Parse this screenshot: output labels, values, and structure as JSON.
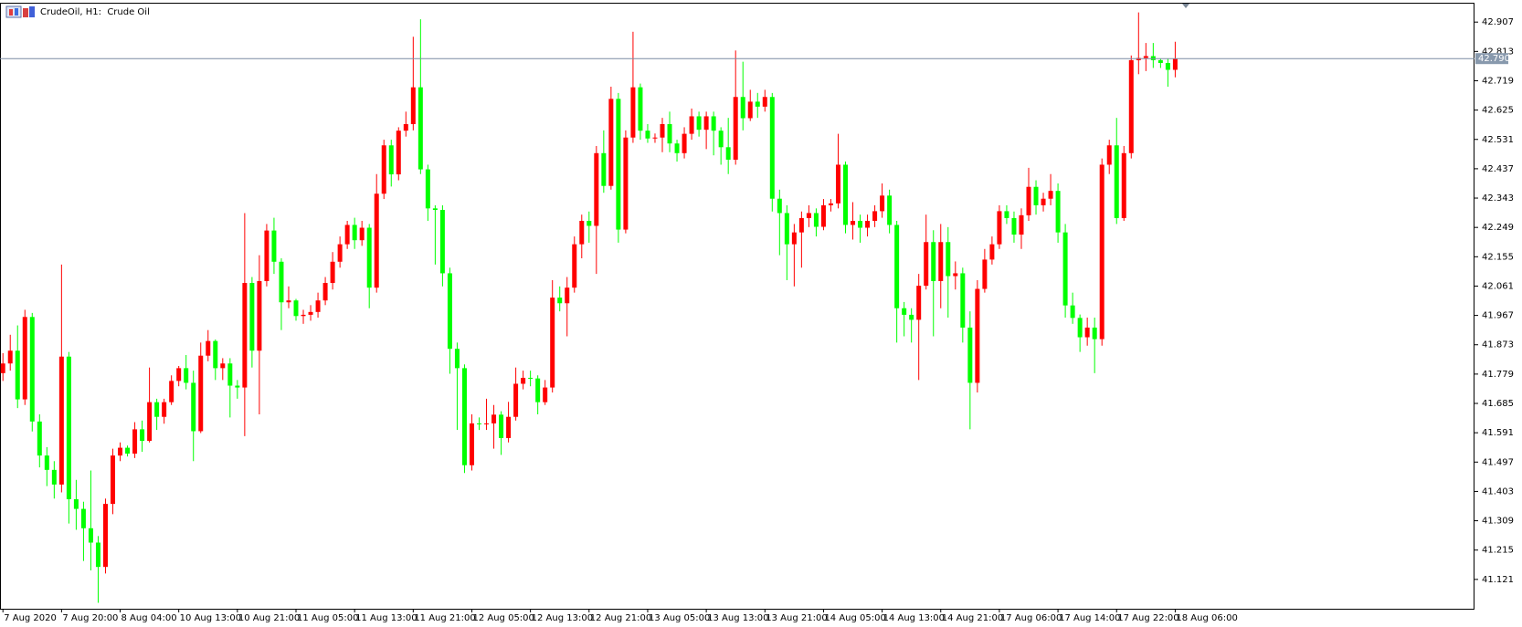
{
  "chart_data": {
    "type": "candlestick",
    "title": "CrudeOil, H1:  Crude Oil",
    "up_color": "#ff0000",
    "down_color": "#00ff00",
    "ylim": [
      41.027,
      42.969
    ],
    "yticks": [
      42.907,
      42.813,
      42.719,
      42.625,
      42.531,
      42.437,
      42.343,
      42.249,
      42.155,
      42.061,
      41.967,
      41.873,
      41.779,
      41.685,
      41.591,
      41.497,
      41.403,
      41.309,
      41.215,
      41.121
    ],
    "current_price": {
      "value": 42.79,
      "label": "42.790"
    },
    "categories": [
      "7 Aug 2020",
      null,
      null,
      null,
      null,
      null,
      null,
      null,
      "7 Aug 20:00",
      null,
      null,
      null,
      null,
      null,
      null,
      null,
      "8 Aug 04:00",
      null,
      null,
      null,
      null,
      null,
      null,
      null,
      "10 Aug 13:00",
      null,
      null,
      null,
      null,
      null,
      null,
      null,
      "10 Aug 21:00",
      null,
      null,
      null,
      null,
      null,
      null,
      null,
      "11 Aug 05:00",
      null,
      null,
      null,
      null,
      null,
      null,
      null,
      "11 Aug 13:00",
      null,
      null,
      null,
      null,
      null,
      null,
      null,
      "11 Aug 21:00",
      null,
      null,
      null,
      null,
      null,
      null,
      null,
      "12 Aug 05:00",
      null,
      null,
      null,
      null,
      null,
      null,
      null,
      "12 Aug 13:00",
      null,
      null,
      null,
      null,
      null,
      null,
      null,
      "12 Aug 21:00",
      null,
      null,
      null,
      null,
      null,
      null,
      null,
      "13 Aug 05:00",
      null,
      null,
      null,
      null,
      null,
      null,
      null,
      "13 Aug 13:00",
      null,
      null,
      null,
      null,
      null,
      null,
      null,
      "13 Aug 21:00",
      null,
      null,
      null,
      null,
      null,
      null,
      null,
      "14 Aug 05:00",
      null,
      null,
      null,
      null,
      null,
      null,
      null,
      "14 Aug 13:00",
      null,
      null,
      null,
      null,
      null,
      null,
      null,
      "14 Aug 21:00",
      null,
      null,
      null,
      null,
      null,
      null,
      null,
      "17 Aug 06:00",
      null,
      null,
      null,
      null,
      null,
      null,
      null,
      "17 Aug 14:00",
      null,
      null,
      null,
      null,
      null,
      null,
      null,
      "17 Aug 22:00",
      null,
      null,
      null,
      null,
      null,
      null,
      null,
      "18 Aug 06:00"
    ],
    "open": [
      41.782,
      41.813,
      41.854,
      41.698,
      41.962,
      41.627,
      41.518,
      41.472,
      41.425,
      41.835,
      41.378,
      41.347,
      41.285,
      41.239,
      41.161,
      41.363,
      41.518,
      41.543,
      41.524,
      41.602,
      41.565,
      41.689,
      41.642,
      41.689,
      41.757,
      41.798,
      41.751,
      41.596,
      41.838,
      41.885,
      41.798,
      41.813,
      41.742,
      41.736,
      42.071,
      41.854,
      42.077,
      42.239,
      42.139,
      42.009,
      42.015,
      41.965,
      41.969,
      41.978,
      42.015,
      42.071,
      42.139,
      42.195,
      42.257,
      42.208,
      42.248,
      42.056,
      42.357,
      42.512,
      42.419,
      42.559,
      42.58,
      42.698,
      42.435,
      42.31,
      42.305,
      42.102,
      41.86,
      41.798,
      41.487,
      41.621,
      41.618,
      41.621,
      41.649,
      41.574,
      41.642,
      41.748,
      41.767,
      41.765,
      41.689,
      41.736,
      42.024,
      42.006,
      42.056,
      42.195,
      42.27,
      42.254,
      42.487,
      42.382,
      42.661,
      42.242,
      42.537,
      42.698,
      42.559,
      42.534,
      42.537,
      42.58,
      42.518,
      42.487,
      42.549,
      42.605,
      42.562,
      42.605,
      42.559,
      42.506,
      42.466,
      42.667,
      42.599,
      42.652,
      42.636,
      42.667,
      42.341,
      42.295,
      42.195,
      42.233,
      42.279,
      42.295,
      42.251,
      42.32,
      42.326,
      42.45,
      42.257,
      42.27,
      42.248,
      42.27,
      42.301,
      42.351,
      42.257,
      41.99,
      41.969,
      41.953,
      42.062,
      42.202,
      42.077,
      42.202,
      42.093,
      42.102,
      41.928,
      41.751,
      42.052,
      42.146,
      42.195,
      42.301,
      42.279,
      42.226,
      42.288,
      42.379,
      42.32,
      42.341,
      42.366,
      42.233,
      41.999,
      41.959,
      41.897,
      41.928,
      41.891,
      42.45,
      42.512,
      42.279,
      42.487,
      42.785,
      42.792,
      42.798,
      42.785,
      42.776,
      42.754
    ],
    "high": [
      41.846,
      41.905,
      41.935,
      41.985,
      41.975,
      41.65,
      41.545,
      41.5,
      42.13,
      41.85,
      41.44,
      41.37,
      41.47,
      41.26,
      41.38,
      41.54,
      41.56,
      41.55,
      41.625,
      41.63,
      41.8,
      41.7,
      41.7,
      41.775,
      41.805,
      41.84,
      41.79,
      41.88,
      41.92,
      41.89,
      41.83,
      41.83,
      41.76,
      42.295,
      42.09,
      42.16,
      42.26,
      42.28,
      42.15,
      42.06,
      42.02,
      41.985,
      42.0,
      42.04,
      42.09,
      42.17,
      42.22,
      42.27,
      42.28,
      42.27,
      42.26,
      42.42,
      42.53,
      42.53,
      42.57,
      42.62,
      42.86,
      42.916,
      42.45,
      42.32,
      42.32,
      42.12,
      41.88,
      41.81,
      41.65,
      41.64,
      41.7,
      41.68,
      41.66,
      41.69,
      41.8,
      41.79,
      41.79,
      41.775,
      41.76,
      42.08,
      42.06,
      42.09,
      42.22,
      42.29,
      42.3,
      42.51,
      42.56,
      42.7,
      42.68,
      42.56,
      42.876,
      42.71,
      42.58,
      42.55,
      42.6,
      42.62,
      42.53,
      42.57,
      42.63,
      42.62,
      42.62,
      42.62,
      42.57,
      42.6,
      42.816,
      42.78,
      42.69,
      42.68,
      42.69,
      42.68,
      42.37,
      42.32,
      42.26,
      42.3,
      42.32,
      42.31,
      42.34,
      42.34,
      42.549,
      42.46,
      42.33,
      42.29,
      42.29,
      42.32,
      42.39,
      42.37,
      42.27,
      42.01,
      41.99,
      42.1,
      42.29,
      42.24,
      42.26,
      42.25,
      42.14,
      42.12,
      41.98,
      42.08,
      42.18,
      42.22,
      42.32,
      42.32,
      42.3,
      42.31,
      42.44,
      42.4,
      42.36,
      42.42,
      42.39,
      42.26,
      42.04,
      41.97,
      41.96,
      41.96,
      42.47,
      42.53,
      42.6,
      42.51,
      42.8,
      42.938,
      42.84,
      42.84,
      42.79,
      42.79,
      42.844
    ],
    "low": [
      41.757,
      41.79,
      41.67,
      41.68,
      41.595,
      41.48,
      41.42,
      41.38,
      41.4,
      41.3,
      41.28,
      41.18,
      41.15,
      41.046,
      41.14,
      41.33,
      41.5,
      41.515,
      41.51,
      41.53,
      41.56,
      41.6,
      41.62,
      41.68,
      41.74,
      41.73,
      41.5,
      41.59,
      41.82,
      41.76,
      41.76,
      41.64,
      41.7,
      41.58,
      41.8,
      41.65,
      42.06,
      42.1,
      41.92,
      41.99,
      41.95,
      41.94,
      41.95,
      41.96,
      42.0,
      42.05,
      42.12,
      42.18,
      42.18,
      42.19,
      41.99,
      42.04,
      42.34,
      42.38,
      42.4,
      42.54,
      42.56,
      42.42,
      42.27,
      42.13,
      42.06,
      41.78,
      41.6,
      41.462,
      41.47,
      41.6,
      41.6,
      41.54,
      41.52,
      41.56,
      41.63,
      41.73,
      41.74,
      41.65,
      41.68,
      41.72,
      41.98,
      41.9,
      42.04,
      42.15,
      42.2,
      42.1,
      42.36,
      42.37,
      42.2,
      42.23,
      42.52,
      42.53,
      42.52,
      42.52,
      42.49,
      42.49,
      42.46,
      42.47,
      42.53,
      42.54,
      42.5,
      42.48,
      42.45,
      42.42,
      42.45,
      42.56,
      42.59,
      42.6,
      42.62,
      42.3,
      42.16,
      42.08,
      42.06,
      42.12,
      42.25,
      42.22,
      42.24,
      42.3,
      42.31,
      42.23,
      42.21,
      42.2,
      42.22,
      42.25,
      42.28,
      42.23,
      41.88,
      41.9,
      41.88,
      41.76,
      42.05,
      41.9,
      41.99,
      41.96,
      42.05,
      41.88,
      41.602,
      41.72,
      42.04,
      42.13,
      42.18,
      42.26,
      42.2,
      42.18,
      42.27,
      42.29,
      42.3,
      42.32,
      42.2,
      41.96,
      41.94,
      41.85,
      41.87,
      41.782,
      41.87,
      42.42,
      42.26,
      42.27,
      42.47,
      42.74,
      42.75,
      42.76,
      42.76,
      42.7,
      42.73
    ],
    "close": [
      41.813,
      41.854,
      41.698,
      41.962,
      41.627,
      41.518,
      41.472,
      41.425,
      41.835,
      41.378,
      41.347,
      41.285,
      41.239,
      41.161,
      41.363,
      41.518,
      41.543,
      41.524,
      41.602,
      41.565,
      41.689,
      41.642,
      41.689,
      41.757,
      41.798,
      41.751,
      41.596,
      41.838,
      41.885,
      41.798,
      41.813,
      41.742,
      41.736,
      42.071,
      41.854,
      42.077,
      42.239,
      42.139,
      42.009,
      42.015,
      41.965,
      41.969,
      41.978,
      42.015,
      42.071,
      42.139,
      42.195,
      42.257,
      42.208,
      42.248,
      42.056,
      42.357,
      42.512,
      42.419,
      42.559,
      42.58,
      42.698,
      42.435,
      42.31,
      42.305,
      42.102,
      41.86,
      41.798,
      41.487,
      41.621,
      41.618,
      41.621,
      41.649,
      41.574,
      41.642,
      41.748,
      41.767,
      41.765,
      41.689,
      41.736,
      42.024,
      42.006,
      42.056,
      42.195,
      42.27,
      42.254,
      42.487,
      42.382,
      42.661,
      42.242,
      42.537,
      42.698,
      42.559,
      42.534,
      42.537,
      42.58,
      42.518,
      42.487,
      42.549,
      42.605,
      42.562,
      42.605,
      42.559,
      42.506,
      42.466,
      42.667,
      42.599,
      42.652,
      42.636,
      42.667,
      42.341,
      42.295,
      42.195,
      42.233,
      42.279,
      42.295,
      42.251,
      42.32,
      42.326,
      42.45,
      42.257,
      42.27,
      42.248,
      42.27,
      42.301,
      42.351,
      42.257,
      41.99,
      41.969,
      41.953,
      42.062,
      42.202,
      42.077,
      42.202,
      42.093,
      42.102,
      41.928,
      41.751,
      42.052,
      42.146,
      42.195,
      42.301,
      42.279,
      42.226,
      42.288,
      42.379,
      42.32,
      42.341,
      42.366,
      42.233,
      41.999,
      41.959,
      41.897,
      41.928,
      41.891,
      42.45,
      42.512,
      42.279,
      42.487,
      42.785,
      42.792,
      42.798,
      42.785,
      42.776,
      42.754,
      42.79
    ]
  }
}
